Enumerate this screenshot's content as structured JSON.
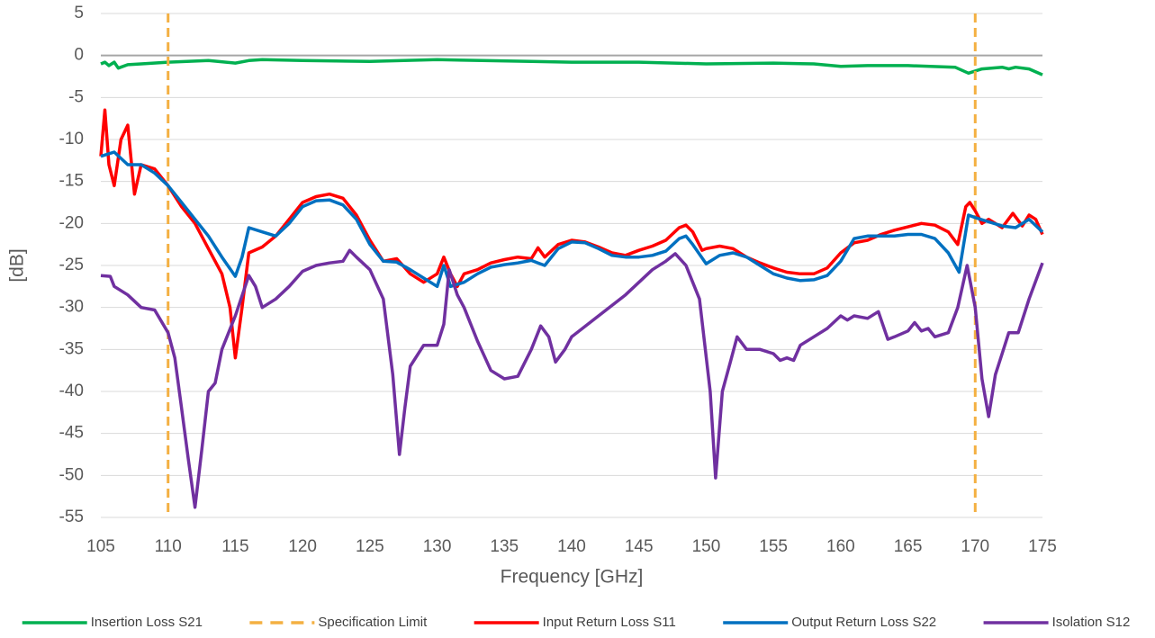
{
  "chart_data": {
    "type": "line",
    "x_label": "Frequency [GHz]",
    "y_label": "[dB]",
    "xlim": [
      105,
      175
    ],
    "xticks": [
      105,
      110,
      115,
      120,
      125,
      130,
      135,
      140,
      145,
      150,
      155,
      160,
      165,
      170,
      175
    ],
    "ylim": [
      -55,
      5
    ],
    "yticks": [
      -55,
      -50,
      -45,
      -40,
      -35,
      -30,
      -25,
      -20,
      -15,
      -10,
      -5,
      0,
      5
    ],
    "grid": true,
    "legend": "bottom",
    "series": [
      {
        "name": "Insertion Loss S21",
        "color": "#00b050",
        "x": [
          105,
          105.3,
          105.6,
          106,
          106.3,
          107,
          108,
          110,
          113,
          115,
          116,
          117,
          120,
          125,
          130,
          137,
          140,
          145,
          150,
          155,
          158,
          160,
          162,
          165,
          168.5,
          169.5,
          170.5,
          172,
          172.5,
          173,
          174,
          175
        ],
        "values": [
          -1,
          -0.8,
          -1.2,
          -0.8,
          -1.5,
          -1.1,
          -1,
          -0.8,
          -0.6,
          -0.9,
          -0.6,
          -0.5,
          -0.6,
          -0.7,
          -0.5,
          -0.7,
          -0.8,
          -0.8,
          -1,
          -0.9,
          -1,
          -1.3,
          -1.2,
          -1.2,
          -1.4,
          -2.1,
          -1.6,
          -1.4,
          -1.6,
          -1.4,
          -1.6,
          -2.3
        ]
      },
      {
        "name": "Specification Limit",
        "color": "#f4b042",
        "dashed": true,
        "vertical": true,
        "x": [
          110,
          170
        ]
      },
      {
        "name": "Input Return Loss S11",
        "color": "#ff0000",
        "x": [
          105,
          105.3,
          105.6,
          106,
          106.5,
          107,
          107.5,
          108,
          109,
          110,
          111,
          112,
          113,
          114,
          114.6,
          115,
          115.5,
          116,
          117,
          118,
          119,
          120,
          121,
          122,
          123,
          124,
          125,
          126,
          127,
          128,
          129,
          130,
          130.5,
          131,
          131.5,
          132,
          133,
          134,
          135,
          136,
          137,
          137.5,
          138,
          139,
          140,
          141,
          142,
          143,
          144,
          145,
          146,
          147,
          148,
          148.5,
          149,
          149.7,
          150,
          151,
          152,
          153,
          154,
          155,
          156,
          157,
          158,
          159,
          160,
          161,
          162,
          163,
          164,
          165,
          166,
          167,
          168,
          168.7,
          169.3,
          169.6,
          170,
          170.5,
          171,
          172,
          172.8,
          173.5,
          174,
          174.5,
          175
        ],
        "values": [
          -12,
          -6.5,
          -13,
          -15.5,
          -10,
          -8.3,
          -16.5,
          -13,
          -13.5,
          -15.5,
          -18,
          -20,
          -23,
          -26,
          -30,
          -36,
          -30,
          -23.5,
          -22.8,
          -21.5,
          -19.5,
          -17.5,
          -16.8,
          -16.5,
          -17,
          -19,
          -22,
          -24.5,
          -24.2,
          -26,
          -27,
          -26,
          -24,
          -26,
          -27.5,
          -26,
          -25.5,
          -24.7,
          -24.3,
          -24,
          -24.2,
          -22.9,
          -24,
          -22.5,
          -22,
          -22.2,
          -22.8,
          -23.5,
          -23.8,
          -23.2,
          -22.7,
          -22,
          -20.5,
          -20.2,
          -21,
          -23.2,
          -23,
          -22.7,
          -23,
          -24,
          -24.7,
          -25.3,
          -25.8,
          -26,
          -26,
          -25.3,
          -23.5,
          -22.3,
          -22,
          -21.3,
          -20.8,
          -20.4,
          -20,
          -20.2,
          -21,
          -22.5,
          -18,
          -17.5,
          -18.5,
          -20,
          -19.5,
          -20.5,
          -18.8,
          -20.3,
          -19,
          -19.5,
          -21.3
        ]
      },
      {
        "name": "Output Return Loss S22",
        "color": "#0070c0",
        "x": [
          105,
          106,
          107,
          108,
          109,
          110,
          111,
          112,
          113,
          114,
          115,
          115.5,
          116,
          117,
          118,
          119,
          120,
          121,
          122,
          123,
          124,
          125,
          126,
          127,
          128,
          129,
          130,
          130.5,
          131,
          132,
          133,
          134,
          135,
          136,
          137,
          137.5,
          138,
          139,
          140,
          141,
          142,
          143,
          144,
          145,
          146,
          147,
          148,
          148.5,
          149,
          150,
          151,
          152,
          153,
          154,
          155,
          156,
          157,
          158,
          159,
          160,
          161,
          162,
          163,
          164,
          165,
          166,
          167,
          168,
          168.8,
          169.5,
          170,
          171,
          172,
          173,
          174,
          175
        ],
        "values": [
          -12,
          -11.5,
          -13,
          -13,
          -14,
          -15.5,
          -17.5,
          -19.5,
          -21.5,
          -24,
          -26.3,
          -24,
          -20.5,
          -21,
          -21.5,
          -20,
          -18,
          -17.3,
          -17.2,
          -17.8,
          -19.5,
          -22.5,
          -24.5,
          -24.6,
          -25.5,
          -26.5,
          -27.5,
          -25,
          -27.5,
          -27,
          -26,
          -25.2,
          -24.9,
          -24.7,
          -24.4,
          -24.7,
          -25,
          -23,
          -22.2,
          -22.3,
          -23,
          -23.8,
          -24,
          -24,
          -23.8,
          -23.3,
          -21.8,
          -21.5,
          -22.5,
          -24.8,
          -23.8,
          -23.5,
          -24,
          -25,
          -26,
          -26.5,
          -26.8,
          -26.7,
          -26.2,
          -24.5,
          -21.8,
          -21.5,
          -21.5,
          -21.5,
          -21.3,
          -21.3,
          -21.8,
          -23.5,
          -25.8,
          -19,
          -19.3,
          -19.8,
          -20.3,
          -20.5,
          -19.5,
          -21
        ]
      },
      {
        "name": "Isolation S12",
        "color": "#7030a0",
        "x": [
          105,
          105.7,
          106,
          107,
          108,
          109,
          110,
          110.5,
          111,
          111.5,
          112,
          112.5,
          113,
          113.5,
          114,
          115,
          116,
          116.5,
          117,
          118,
          119,
          120,
          121,
          122,
          123,
          123.5,
          124,
          125,
          126,
          126.7,
          127.2,
          127.6,
          128,
          129,
          130,
          130.5,
          130.9,
          131.5,
          132,
          133,
          134,
          135,
          136,
          137,
          137.7,
          138.3,
          138.8,
          139.5,
          140,
          142,
          144,
          146,
          147,
          147.7,
          148.5,
          149.5,
          150.3,
          150.7,
          151.2,
          151.8,
          152.3,
          153,
          154,
          155,
          155.5,
          156,
          156.5,
          157,
          158,
          159,
          160,
          160.5,
          161,
          162,
          162.8,
          163.5,
          164,
          165,
          165.5,
          166,
          166.5,
          167,
          168,
          168.7,
          169.4,
          170,
          170.5,
          171,
          171.5,
          172,
          172.5,
          173.2,
          174,
          175
        ],
        "values": [
          -26.2,
          -26.3,
          -27.5,
          -28.5,
          -30,
          -30.3,
          -33,
          -36,
          -42,
          -48,
          -53.8,
          -47,
          -40,
          -39,
          -35,
          -31,
          -26.2,
          -27.5,
          -30,
          -29,
          -27.5,
          -25.7,
          -25,
          -24.7,
          -24.5,
          -23.2,
          -24,
          -25.5,
          -29,
          -38,
          -47.5,
          -42,
          -37,
          -34.5,
          -34.5,
          -32,
          -25.5,
          -28.5,
          -30,
          -34,
          -37.5,
          -38.5,
          -38.2,
          -35,
          -32.2,
          -33.5,
          -36.5,
          -35,
          -33.5,
          -31,
          -28.5,
          -25.5,
          -24.5,
          -23.6,
          -25,
          -29,
          -40,
          -50.3,
          -40,
          -36.5,
          -33.5,
          -35,
          -35,
          -35.5,
          -36.3,
          -36,
          -36.3,
          -34.5,
          -33.5,
          -32.5,
          -31,
          -31.5,
          -31,
          -31.3,
          -30.5,
          -33.8,
          -33.5,
          -32.8,
          -31.8,
          -32.8,
          -32.5,
          -33.5,
          -33,
          -30,
          -25,
          -30,
          -38.5,
          -43,
          -38,
          -35.5,
          -33,
          -33,
          -29,
          -24.7
        ]
      }
    ]
  }
}
